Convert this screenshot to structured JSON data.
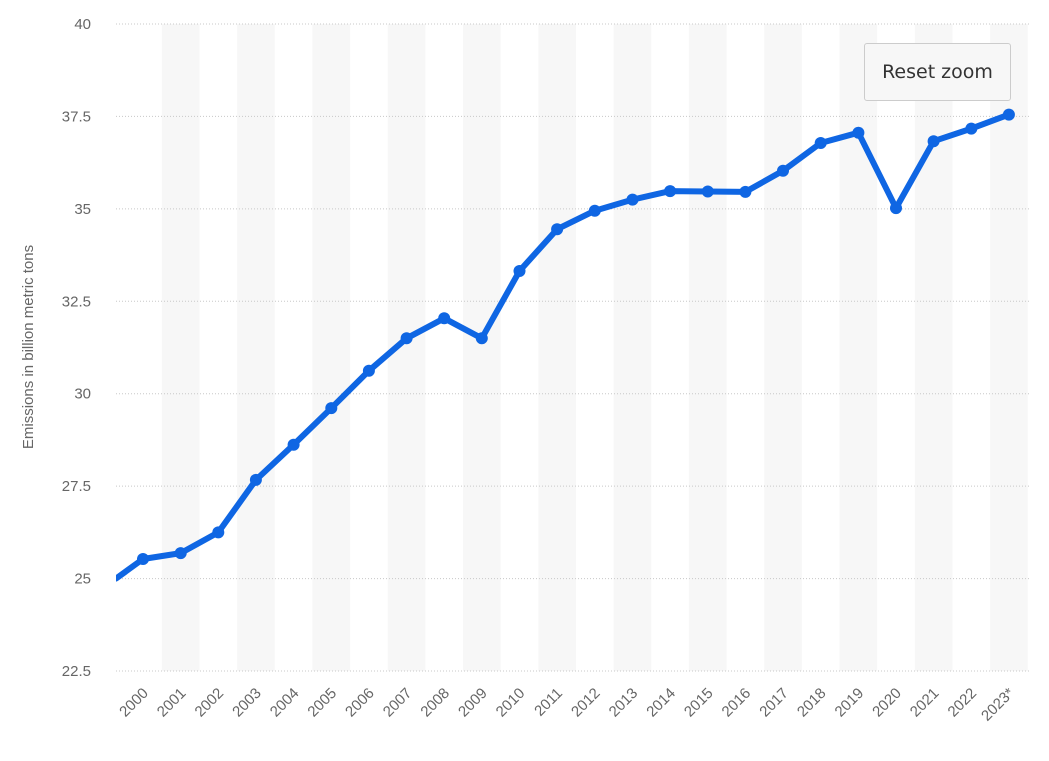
{
  "chart_data": {
    "type": "line",
    "title": "",
    "xlabel": "",
    "ylabel": "Emissions in billion metric tons",
    "x": [
      "2000",
      "2001",
      "2002",
      "2003",
      "2004",
      "2005",
      "2006",
      "2007",
      "2008",
      "2009",
      "2010",
      "2011",
      "2012",
      "2013",
      "2014",
      "2015",
      "2016",
      "2017",
      "2018",
      "2019",
      "2020",
      "2021",
      "2022",
      "2023*"
    ],
    "series": [
      {
        "values": [
          25.53,
          25.69,
          26.25,
          27.67,
          28.62,
          29.61,
          30.62,
          31.5,
          32.04,
          31.5,
          33.32,
          34.45,
          34.95,
          35.25,
          35.48,
          35.47,
          35.46,
          36.03,
          36.78,
          37.06,
          35.02,
          36.83,
          37.17,
          37.55
        ]
      }
    ],
    "ylim": [
      22.5,
      40
    ],
    "yticks": [
      "22.5",
      "25",
      "27.5",
      "30",
      "32.5",
      "35",
      "37.5",
      "40"
    ],
    "grid": true,
    "line_color": "#0f66e3",
    "band_color": "#f7f7f7"
  },
  "controls": {
    "reset_zoom_label": "Reset zoom"
  }
}
